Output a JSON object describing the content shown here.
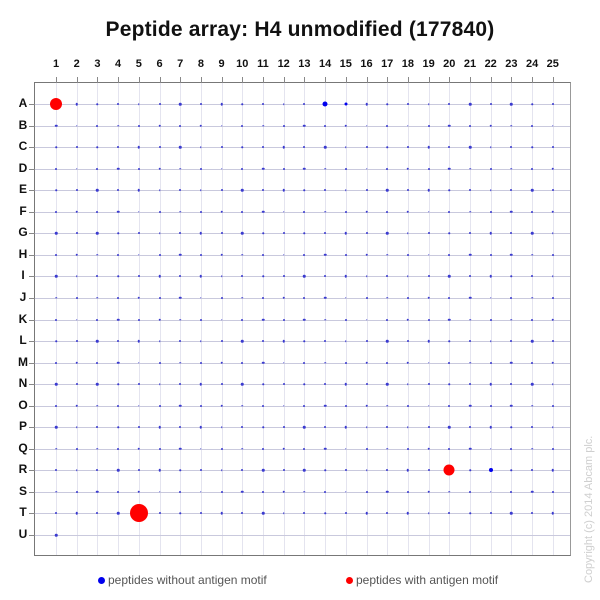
{
  "chart_data": {
    "type": "scatter",
    "title": "Peptide array:  H4 unmodified (177840)",
    "xlabel": "",
    "ylabel": "",
    "x_categories": [
      "1",
      "2",
      "3",
      "4",
      "5",
      "6",
      "7",
      "8",
      "9",
      "10",
      "11",
      "12",
      "13",
      "14",
      "15",
      "16",
      "17",
      "18",
      "19",
      "20",
      "21",
      "22",
      "23",
      "24",
      "25"
    ],
    "y_categories": [
      "A",
      "B",
      "C",
      "D",
      "E",
      "F",
      "G",
      "H",
      "I",
      "J",
      "K",
      "L",
      "M",
      "N",
      "O",
      "P",
      "Q",
      "R",
      "S",
      "T",
      "U"
    ],
    "grid": true,
    "legend_position": "bottom",
    "series": [
      {
        "name": "peptides without antigen motif",
        "color": "#0000ee",
        "points": [
          {
            "row": "A",
            "col": 14,
            "size": 5
          },
          {
            "row": "A",
            "col": 15,
            "size": 3
          },
          {
            "row": "R",
            "col": 22,
            "size": 4
          }
        ],
        "background_spots": "tiny dots at most grid positions (signal near zero)"
      },
      {
        "name": "peptides with antigen motif",
        "color": "#ff0000",
        "points": [
          {
            "row": "A",
            "col": 1,
            "size": 12
          },
          {
            "row": "R",
            "col": 20,
            "size": 11
          },
          {
            "row": "T",
            "col": 5,
            "size": 18
          }
        ]
      }
    ]
  },
  "legend": {
    "without_label": "peptides without antigen motif",
    "with_label": "peptides with antigen motif"
  },
  "copyright": "Copyright (c) 2014 Abcam plc."
}
